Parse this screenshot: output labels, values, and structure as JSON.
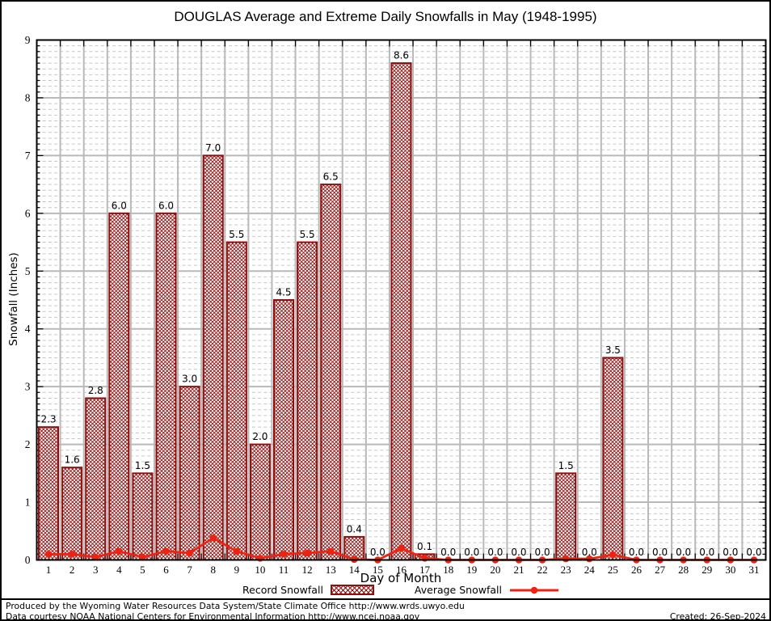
{
  "chart_data": {
    "type": "bar",
    "title": "DOUGLAS Average and Extreme Daily Snowfalls in May (1948-1995)",
    "xlabel": "Day of Month",
    "ylabel": "Snowfall (Inches)",
    "x": [
      1,
      2,
      3,
      4,
      5,
      6,
      7,
      8,
      9,
      10,
      11,
      12,
      13,
      14,
      15,
      16,
      17,
      18,
      19,
      20,
      21,
      22,
      23,
      24,
      25,
      26,
      27,
      28,
      29,
      30,
      31
    ],
    "series": [
      {
        "name": "Record Snowfall",
        "type": "bar",
        "values": [
          2.3,
          1.6,
          2.8,
          6.0,
          1.5,
          6.0,
          3.0,
          7.0,
          5.5,
          2.0,
          4.5,
          5.5,
          6.5,
          0.4,
          0.0,
          8.6,
          0.1,
          0.0,
          0.0,
          0.0,
          0.0,
          0.0,
          1.5,
          0.0,
          3.5,
          0.0,
          0.0,
          0.0,
          0.0,
          0.0,
          0.0
        ]
      },
      {
        "name": "Average Snowfall",
        "type": "line",
        "values": [
          0.1,
          0.1,
          0.05,
          0.15,
          0.05,
          0.15,
          0.12,
          0.38,
          0.15,
          0.03,
          0.1,
          0.12,
          0.15,
          0.01,
          0.0,
          0.2,
          0.03,
          0.0,
          0.0,
          0.0,
          0.0,
          0.0,
          0.02,
          0.02,
          0.09,
          0.0,
          0.0,
          0.0,
          0.0,
          0.0,
          0.0
        ]
      }
    ],
    "ylim": [
      0,
      9
    ],
    "y_major_step": 1,
    "y_minor_step": 0.1,
    "grid": true,
    "legend_position": "bottom",
    "bar_value_labels": true,
    "colors": {
      "bar_edge": "#8f0f0f",
      "line": "#ee2211",
      "grid_major": "#b9b9b9",
      "grid_minor": "#c6c6c6",
      "frame": "#000000",
      "text": "#000000"
    }
  },
  "footer": {
    "produced_by": "Produced by the Wyoming Water Resources Data System/State Climate Office http://www.wrds.uwyo.edu",
    "data_courtesy": "Data courtesy NOAA National Centers for Environmental Information http://www.ncei.noaa.gov",
    "created": "Created: 26-Sep-2024"
  }
}
